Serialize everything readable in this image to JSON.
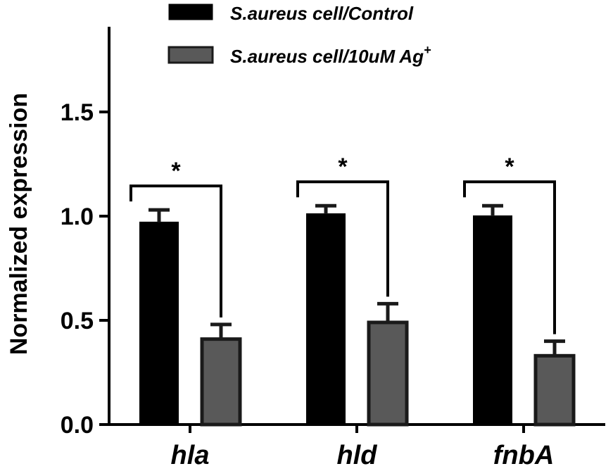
{
  "chart_data": {
    "type": "bar",
    "ylabel": "Normalized expression",
    "ylim": [
      0,
      1.9
    ],
    "yticks": [
      0.0,
      0.5,
      1.0,
      1.5
    ],
    "ytick_labels": [
      "0.0",
      "0.5",
      "1.0",
      "1.5"
    ],
    "categories": [
      "hla",
      "hld",
      "fnbA"
    ],
    "series": [
      {
        "name": "S.aureus cell/Control",
        "name_superscript": "",
        "color": "#000000",
        "values": [
          0.97,
          1.01,
          1.0
        ],
        "errors": [
          0.06,
          0.04,
          0.05
        ]
      },
      {
        "name": "S.aureus cell/10uM Ag",
        "name_superscript": "+",
        "color": "#595959",
        "values": [
          0.41,
          0.49,
          0.33
        ],
        "errors": [
          0.07,
          0.09,
          0.07
        ]
      }
    ],
    "significance": [
      {
        "category": "hla",
        "label": "*"
      },
      {
        "category": "hld",
        "label": "*"
      },
      {
        "category": "fnbA",
        "label": "*"
      }
    ],
    "legend_position": "top",
    "grid": false
  }
}
